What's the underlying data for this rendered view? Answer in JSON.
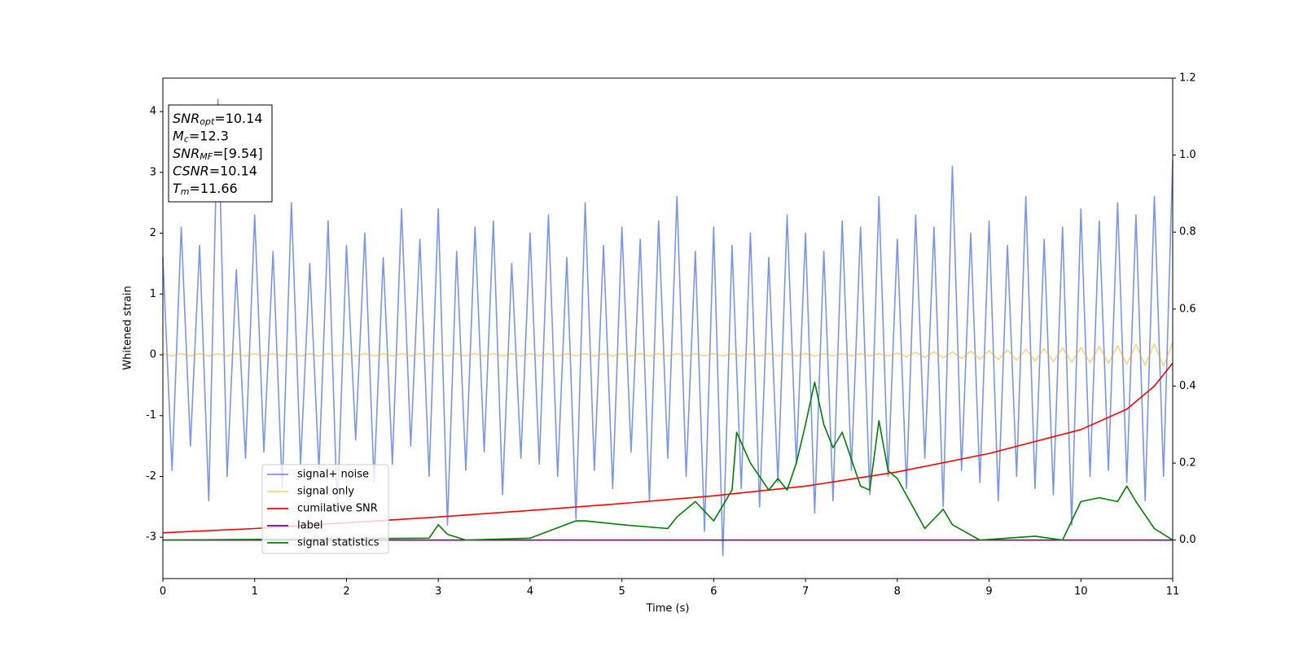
{
  "chart_data": {
    "type": "line",
    "xlabel": "Time (s)",
    "ylabel": "Whitened strain",
    "xlim": [
      0,
      11
    ],
    "xticks": [
      0,
      1,
      2,
      3,
      4,
      5,
      6,
      7,
      8,
      9,
      10,
      11
    ],
    "ylim": [
      -3.68,
      4.55
    ],
    "yticks": [
      -3,
      -2,
      -1,
      0,
      1,
      2,
      3,
      4
    ],
    "y2lim": [
      -0.1,
      1.2
    ],
    "y2ticks": [
      {
        "value": 0,
        "label": "0.0"
      },
      0.2,
      0.4,
      0.6,
      0.8,
      {
        "value": 1,
        "label": "1.0"
      },
      1.2
    ],
    "legend": "lower left",
    "annotation": [
      {
        "symbol": "SNR",
        "subscript": "opt",
        "text": "=10.14"
      },
      {
        "symbol": "M",
        "subscript": "c",
        "text": "=12.3"
      },
      {
        "symbol": "SNR",
        "subscript": "MF",
        "text": "=[9.54]"
      },
      {
        "symbol": "CSNR",
        "text": "=10.14"
      },
      {
        "symbol": "T",
        "subscript": "m",
        "text": "=11.66"
      }
    ],
    "series": [
      {
        "name": "signal+ noise",
        "color": "#4169e1",
        "alpha": 0.7,
        "x": [
          0,
          0.1,
          0.2,
          0.3,
          0.4,
          0.5,
          0.6,
          0.7,
          0.8,
          0.9,
          1,
          1.1,
          1.2,
          1.3,
          1.4,
          1.5,
          1.6,
          1.7,
          1.8,
          1.9,
          2,
          2.1,
          2.2,
          2.3,
          2.4,
          2.5,
          2.6,
          2.7,
          2.8,
          2.9,
          3,
          3.1,
          3.2,
          3.3,
          3.4,
          3.5,
          3.6,
          3.7,
          3.8,
          3.9,
          4,
          4.1,
          4.2,
          4.3,
          4.4,
          4.5,
          4.6,
          4.7,
          4.8,
          4.9,
          5,
          5.1,
          5.2,
          5.3,
          5.4,
          5.5,
          5.6,
          5.7,
          5.8,
          5.9,
          6,
          6.1,
          6.2,
          6.3,
          6.4,
          6.5,
          6.6,
          6.7,
          6.8,
          6.9,
          7,
          7.1,
          7.2,
          7.3,
          7.4,
          7.5,
          7.6,
          7.7,
          7.8,
          7.9,
          8,
          8.1,
          8.2,
          8.3,
          8.4,
          8.5,
          8.6,
          8.7,
          8.8,
          8.9,
          9,
          9.1,
          9.2,
          9.3,
          9.4,
          9.5,
          9.6,
          9.7,
          9.8,
          9.9,
          10,
          10.1,
          10.2,
          10.3,
          10.4,
          10.5,
          10.6,
          10.7,
          10.8,
          10.9,
          11
        ],
        "values": [
          1.6,
          -1.9,
          2.1,
          -1.5,
          1.8,
          -2.4,
          4.2,
          -2.0,
          1.4,
          -1.7,
          2.3,
          -1.6,
          1.7,
          -2.2,
          2.5,
          -1.8,
          1.5,
          -1.9,
          2.2,
          -2.6,
          1.8,
          -1.4,
          2.0,
          -2.1,
          1.6,
          -1.8,
          2.4,
          -1.5,
          1.9,
          -2.0,
          2.4,
          -2.8,
          1.7,
          -1.9,
          2.1,
          -1.6,
          2.2,
          -2.3,
          1.5,
          -1.7,
          2.0,
          -1.8,
          2.3,
          -2.0,
          1.6,
          -2.7,
          2.5,
          -1.9,
          1.8,
          -2.2,
          2.1,
          -1.6,
          1.9,
          -2.4,
          2.2,
          -1.7,
          2.6,
          -2.0,
          1.7,
          -2.9,
          2.1,
          -3.3,
          1.8,
          -2.2,
          2.0,
          -2.5,
          1.6,
          -2.1,
          2.3,
          -1.8,
          2.0,
          -2.6,
          1.7,
          -2.4,
          2.2,
          -1.9,
          2.1,
          -2.3,
          2.6,
          -2.0,
          1.9,
          -2.2,
          2.3,
          -1.7,
          2.1,
          -2.5,
          3.1,
          -1.9,
          2.0,
          -2.1,
          2.2,
          -2.4,
          1.8,
          -2.0,
          2.6,
          -2.2,
          1.9,
          -2.3,
          2.1,
          -2.8,
          2.4,
          -2.0,
          2.2,
          -1.9,
          2.5,
          -2.1,
          2.3,
          -2.4,
          2.6,
          -2.0,
          3.2
        ]
      },
      {
        "name": "signal only",
        "color": "#ffa500",
        "alpha": 0.5,
        "x": [
          0,
          0.1,
          0.2,
          0.3,
          0.4,
          0.5,
          0.6,
          0.7,
          0.8,
          0.9,
          1,
          1.1,
          1.2,
          1.3,
          1.4,
          1.5,
          1.6,
          1.7,
          1.8,
          1.9,
          2,
          2.1,
          2.2,
          2.3,
          2.4,
          2.5,
          2.6,
          2.7,
          2.8,
          2.9,
          3,
          3.1,
          3.2,
          3.3,
          3.4,
          3.5,
          3.6,
          3.7,
          3.8,
          3.9,
          4,
          4.1,
          4.2,
          4.3,
          4.4,
          4.5,
          4.6,
          4.7,
          4.8,
          4.9,
          5,
          5.1,
          5.2,
          5.3,
          5.4,
          5.5,
          5.6,
          5.7,
          5.8,
          5.9,
          6,
          6.1,
          6.2,
          6.3,
          6.4,
          6.5,
          6.6,
          6.7,
          6.8,
          6.9,
          7,
          7.1,
          7.2,
          7.3,
          7.4,
          7.5,
          7.6,
          7.7,
          7.8,
          7.9,
          8,
          8.1,
          8.2,
          8.3,
          8.4,
          8.5,
          8.6,
          8.7,
          8.8,
          8.9,
          9,
          9.1,
          9.2,
          9.3,
          9.4,
          9.5,
          9.6,
          9.7,
          9.8,
          9.9,
          10,
          10.1,
          10.2,
          10.3,
          10.4,
          10.5,
          10.6,
          10.7,
          10.8,
          10.9,
          11
        ],
        "values": [
          0.02,
          -0.02,
          0.02,
          -0.02,
          0.02,
          -0.02,
          0.02,
          -0.02,
          0.02,
          -0.02,
          0.02,
          -0.02,
          0.02,
          -0.02,
          0.02,
          -0.02,
          0.02,
          -0.02,
          0.02,
          -0.02,
          0.02,
          -0.02,
          0.02,
          -0.02,
          0.02,
          -0.02,
          0.02,
          -0.02,
          0.02,
          -0.02,
          0.02,
          -0.02,
          0.02,
          -0.02,
          0.02,
          -0.02,
          0.02,
          -0.02,
          0.02,
          -0.02,
          0.02,
          -0.02,
          0.02,
          -0.02,
          0.02,
          -0.02,
          0.02,
          -0.02,
          0.02,
          -0.02,
          0.02,
          -0.02,
          0.02,
          -0.02,
          0.02,
          -0.02,
          0.02,
          -0.02,
          0.02,
          -0.02,
          0.02,
          -0.02,
          0.02,
          -0.02,
          0.02,
          -0.02,
          0.02,
          -0.02,
          0.02,
          -0.02,
          0.02,
          -0.02,
          0.02,
          -0.02,
          0.02,
          -0.02,
          0.02,
          -0.02,
          0.02,
          -0.02,
          0.03,
          -0.03,
          0.04,
          -0.04,
          0.05,
          -0.05,
          0.05,
          -0.06,
          0.06,
          -0.07,
          0.07,
          -0.08,
          0.08,
          -0.09,
          0.09,
          -0.1,
          0.1,
          -0.11,
          0.11,
          -0.12,
          0.12,
          -0.13,
          0.14,
          -0.14,
          0.15,
          -0.16,
          0.17,
          -0.17,
          0.18,
          -0.19,
          0.2
        ]
      },
      {
        "name": "cumilative SNR",
        "color": "#ff0000",
        "axis": "y2",
        "x": [
          0,
          1,
          2,
          3,
          4,
          5,
          6,
          7,
          8,
          9,
          10,
          10.5,
          10.8,
          11
        ],
        "values": [
          0.019,
          0.03,
          0.045,
          0.06,
          0.077,
          0.095,
          0.115,
          0.14,
          0.177,
          0.225,
          0.287,
          0.34,
          0.4,
          0.46
        ]
      },
      {
        "name": "label",
        "color": "#800080",
        "axis": "y2",
        "x": [
          0,
          11
        ],
        "values": [
          0,
          0
        ]
      },
      {
        "name": "signal statistics",
        "color": "#008000",
        "axis": "y2",
        "x": [
          0,
          2.9,
          3.0,
          3.1,
          3.3,
          4.0,
          4.5,
          4.6,
          5.0,
          5.5,
          5.6,
          5.8,
          6.0,
          6.2,
          6.25,
          6.4,
          6.6,
          6.7,
          6.8,
          6.9,
          7.0,
          7.1,
          7.2,
          7.3,
          7.4,
          7.6,
          7.7,
          7.8,
          7.9,
          8.0,
          8.3,
          8.5,
          8.6,
          8.9,
          9.5,
          9.8,
          10.0,
          10.2,
          10.4,
          10.5,
          10.6,
          10.8,
          11
        ],
        "values": [
          0,
          0.005,
          0.04,
          0.015,
          0,
          0.005,
          0.05,
          0.05,
          0.04,
          0.03,
          0.06,
          0.1,
          0.05,
          0.13,
          0.28,
          0.2,
          0.13,
          0.16,
          0.13,
          0.2,
          0.3,
          0.41,
          0.3,
          0.24,
          0.28,
          0.14,
          0.13,
          0.31,
          0.18,
          0.16,
          0.03,
          0.08,
          0.04,
          0,
          0.01,
          0,
          0.1,
          0.11,
          0.1,
          0.14,
          0.1,
          0.03,
          0
        ]
      }
    ]
  }
}
